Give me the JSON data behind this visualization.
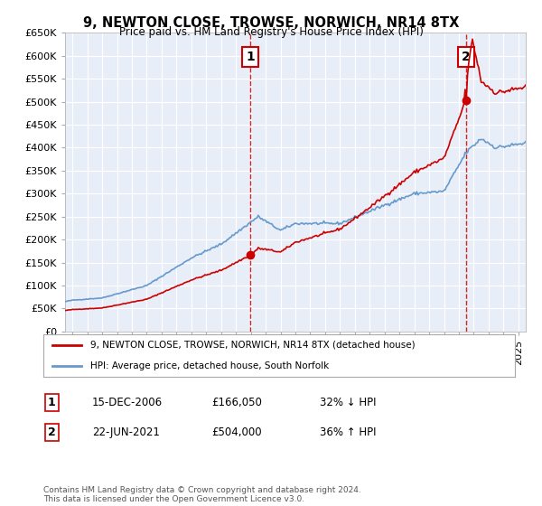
{
  "title1": "9, NEWTON CLOSE, TROWSE, NORWICH, NR14 8TX",
  "title2": "Price paid vs. HM Land Registry's House Price Index (HPI)",
  "legend_line1": "9, NEWTON CLOSE, TROWSE, NORWICH, NR14 8TX (detached house)",
  "legend_line2": "HPI: Average price, detached house, South Norfolk",
  "sale1_date": "15-DEC-2006",
  "sale1_price": 166050,
  "sale1_label": "32% ↓ HPI",
  "sale1_x": 2006.958,
  "sale2_date": "22-JUN-2021",
  "sale2_price": 504000,
  "sale2_label": "36% ↑ HPI",
  "sale2_x": 2021.472,
  "ylim_min": 0,
  "ylim_max": 650000,
  "xlim_min": 1994.5,
  "xlim_max": 2025.5,
  "hpi_color": "#6699cc",
  "price_color": "#cc0000",
  "bg_color": "#e8eef8",
  "grid_color": "#ffffff",
  "footnote": "Contains HM Land Registry data © Crown copyright and database right 2024.\nThis data is licensed under the Open Government Licence v3.0."
}
